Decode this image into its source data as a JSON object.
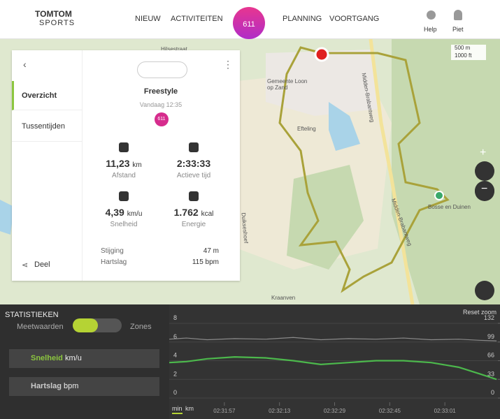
{
  "header": {
    "logo": "TOMTOM",
    "logo_sub": "SPORTS",
    "nav": [
      "NIEUW",
      "ACTIVITEITEN",
      "PLANNING",
      "VOORTGANG"
    ],
    "badge": "611",
    "help": "Help",
    "user": "Piet"
  },
  "map": {
    "labels": [
      "Hilsestraat",
      "Gemeente Loon op Zand",
      "Efteling",
      "Midden-Brabantweg",
      "Midden-Brabantweg",
      "Duikseshoef",
      "Kraanven",
      "Bosse en Duinen"
    ],
    "scale": [
      "500 m",
      "1000 ft"
    ]
  },
  "panel": {
    "tabs": [
      "Overzicht",
      "Tussentijden"
    ],
    "share": "Deel",
    "activity": "Freestyle",
    "date": "Vandaag 12:35",
    "badge": "611",
    "stats": [
      {
        "value": "11,23",
        "unit": "km",
        "label": "Afstand"
      },
      {
        "value": "2:33:33",
        "label": "Actieve tijd"
      },
      {
        "value": "4,39",
        "unit": "km/u",
        "label": "Snelheid"
      },
      {
        "value": "1.762",
        "unit": "kcal",
        "label": "Energie"
      }
    ],
    "details": [
      {
        "label": "Stijging",
        "value": "47 m"
      },
      {
        "label": "Hartslag",
        "value": "115 bpm"
      }
    ]
  },
  "stats_bar": {
    "title": "STATISTIEKEN",
    "left": "Meetwaarden",
    "right": "Zones",
    "metrics": [
      {
        "name": "Snelheid",
        "unit": "km/u"
      },
      {
        "name": "Hartslag",
        "unit": "bpm"
      }
    ]
  },
  "chart": {
    "type": "line",
    "reset": "Reset zoom",
    "axis_units": [
      "min",
      "km"
    ],
    "xlim": [
      9101,
      9197
    ],
    "xticks": [
      {
        "value": 9117,
        "label": "02:31:57"
      },
      {
        "value": 9133,
        "label": "02:32:13"
      },
      {
        "value": 9149,
        "label": "02:32:29"
      },
      {
        "value": 9165,
        "label": "02:32:45"
      },
      {
        "value": 9181,
        "label": "02:33:01"
      }
    ],
    "ylim": [
      0,
      8
    ],
    "yticks": [
      0,
      2,
      4,
      6,
      8
    ],
    "y2lim": [
      0,
      132
    ],
    "y2ticks": [
      0,
      33,
      66,
      99,
      132
    ],
    "series": [
      {
        "name": "Snelheid",
        "color": "#4cb84c",
        "x": [
          9101,
          9106,
          9112,
          9120,
          9129,
          9137,
          9145,
          9153,
          9161,
          9169,
          9177,
          9185,
          9191,
          9196
        ],
        "values": [
          3.8,
          3.9,
          4.2,
          4.4,
          4.3,
          4.0,
          3.6,
          3.8,
          4.0,
          4.0,
          3.8,
          3.3,
          2.6,
          2.0
        ]
      },
      {
        "name": "Hartslag",
        "color": "#8a8a8a",
        "axis": "y2",
        "x": [
          9101,
          9106,
          9112,
          9120,
          9129,
          9137,
          9145,
          9153,
          9161,
          9169,
          9177,
          9185,
          9191,
          9196
        ],
        "values": [
          104,
          106,
          103,
          105,
          104,
          107,
          103,
          105,
          104,
          106,
          103,
          104,
          102,
          101
        ]
      }
    ]
  }
}
